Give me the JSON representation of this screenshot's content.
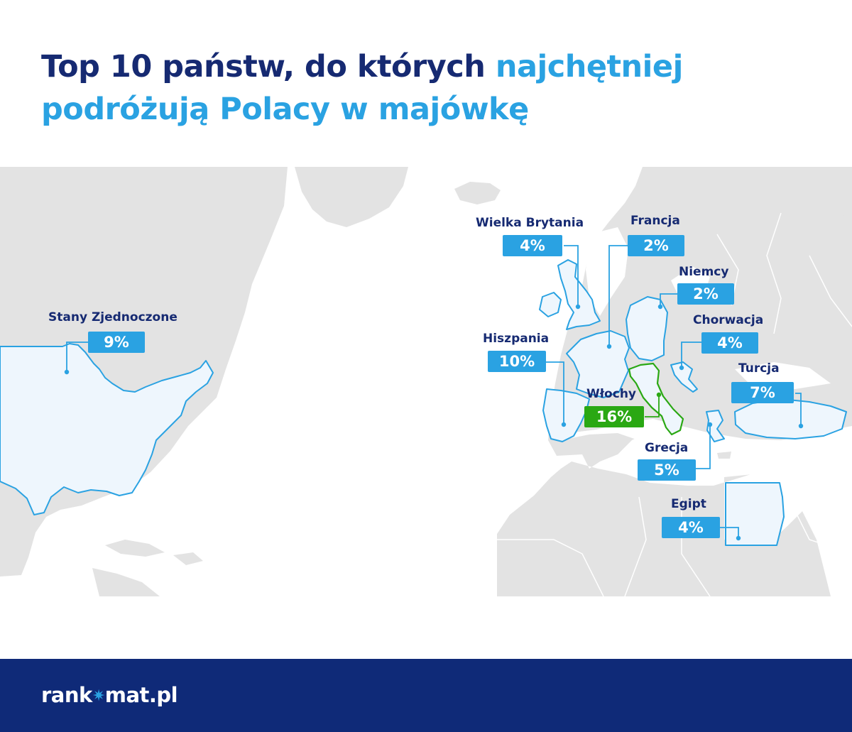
{
  "title": {
    "part1": "Top 10 państw, do których ",
    "highlight1": "najchętniej",
    "highlight2": "podróżują Polacy w majówkę"
  },
  "map": {
    "countries": [
      {
        "id": "usa",
        "label": "Stany Zjednoczone",
        "value": "9%"
      },
      {
        "id": "uk",
        "label": "Wielka Brytania",
        "value": "4%"
      },
      {
        "id": "france",
        "label": "Francja",
        "value": "2%"
      },
      {
        "id": "germany",
        "label": "Niemcy",
        "value": "2%"
      },
      {
        "id": "croatia",
        "label": "Chorwacja",
        "value": "4%"
      },
      {
        "id": "spain",
        "label": "Hiszpania",
        "value": "10%"
      },
      {
        "id": "turkey",
        "label": "Turcja",
        "value": "7%"
      },
      {
        "id": "italy",
        "label": "Włochy",
        "value": "16%"
      },
      {
        "id": "greece",
        "label": "Grecja",
        "value": "5%"
      },
      {
        "id": "egypt",
        "label": "Egipt",
        "value": "4%"
      }
    ],
    "colors": {
      "land": "#e3e3e3",
      "highlighted_land": "#eef6fd",
      "outline": "#2aa2e2",
      "italy_outline": "#2aa813",
      "badge": "#2aa2e2",
      "italy_badge": "#2aa813"
    }
  },
  "footer": {
    "logo_left": "rank",
    "logo_icon": "star-icon",
    "logo_right": "mat.pl",
    "background": "#0f2a78"
  }
}
